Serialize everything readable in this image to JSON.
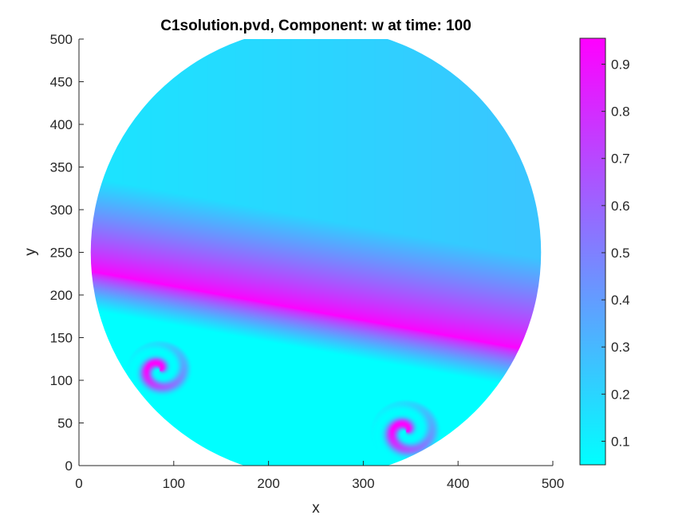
{
  "chart_data": {
    "type": "heatmap",
    "title": "C1solution.pvd, Component: w at time: 100",
    "xlabel": "x",
    "ylabel": "y",
    "xlim": [
      0,
      500
    ],
    "ylim": [
      0,
      500
    ],
    "x_ticks": [
      0,
      100,
      200,
      300,
      400,
      500
    ],
    "x_tick_labels": [
      "0",
      "100",
      "200",
      "300",
      "400",
      "500"
    ],
    "y_ticks": [
      0,
      50,
      100,
      150,
      200,
      250,
      300,
      350,
      400,
      450,
      500
    ],
    "y_tick_labels": [
      "0",
      "50",
      "100",
      "150",
      "200",
      "250",
      "300",
      "350",
      "400",
      "450",
      "500"
    ],
    "domain": {
      "shape": "circle",
      "center": [
        250,
        250
      ],
      "radius": 250
    },
    "colorbar": {
      "range": [
        0.05,
        0.955
      ],
      "ticks": [
        0.1,
        0.2,
        0.3,
        0.4,
        0.5,
        0.6,
        0.7,
        0.8,
        0.9
      ],
      "tick_labels": [
        "0.1",
        "0.2",
        "0.3",
        "0.4",
        "0.5",
        "0.6",
        "0.7",
        "0.8",
        "0.9"
      ],
      "colormap": "cool",
      "color_low": "#00ffff",
      "color_high": "#ff00ff"
    },
    "field_features": {
      "background_value": 0.2,
      "band_peak_value": 0.95,
      "band_low_value": 0.05,
      "spirals": [
        {
          "center": [
            85,
            112
          ],
          "radius": 28
        },
        {
          "center": [
            345,
            40
          ],
          "radius": 30
        }
      ]
    }
  }
}
